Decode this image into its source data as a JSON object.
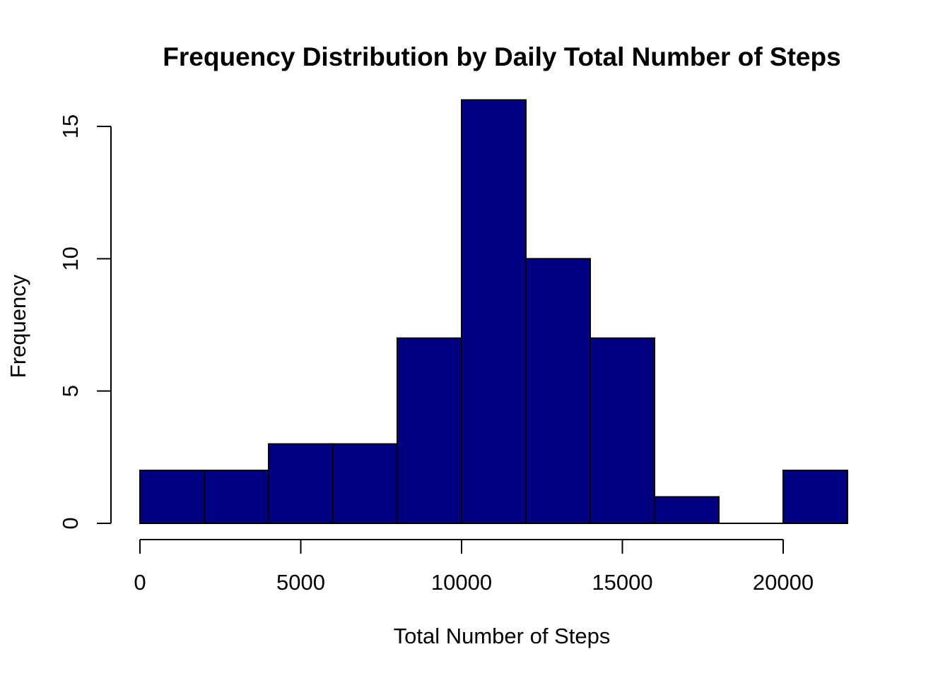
{
  "chart_data": {
    "type": "bar",
    "title": "Frequency Distribution by Daily Total Number of Steps",
    "xlabel": "Total Number of Steps",
    "ylabel": "Frequency",
    "bins": [
      {
        "start": 0,
        "end": 2000,
        "count": 2
      },
      {
        "start": 2000,
        "end": 4000,
        "count": 2
      },
      {
        "start": 4000,
        "end": 6000,
        "count": 3
      },
      {
        "start": 6000,
        "end": 8000,
        "count": 3
      },
      {
        "start": 8000,
        "end": 10000,
        "count": 7
      },
      {
        "start": 10000,
        "end": 12000,
        "count": 16
      },
      {
        "start": 12000,
        "end": 14000,
        "count": 10
      },
      {
        "start": 14000,
        "end": 16000,
        "count": 7
      },
      {
        "start": 16000,
        "end": 18000,
        "count": 1
      },
      {
        "start": 18000,
        "end": 20000,
        "count": 0
      },
      {
        "start": 20000,
        "end": 22000,
        "count": 2
      }
    ],
    "xticks": [
      0,
      5000,
      10000,
      15000,
      20000
    ],
    "yticks": [
      0,
      5,
      10,
      15
    ],
    "xlim": [
      0,
      22000
    ],
    "ylim": [
      0,
      16
    ],
    "grid": false,
    "bar_color": "#000080"
  }
}
